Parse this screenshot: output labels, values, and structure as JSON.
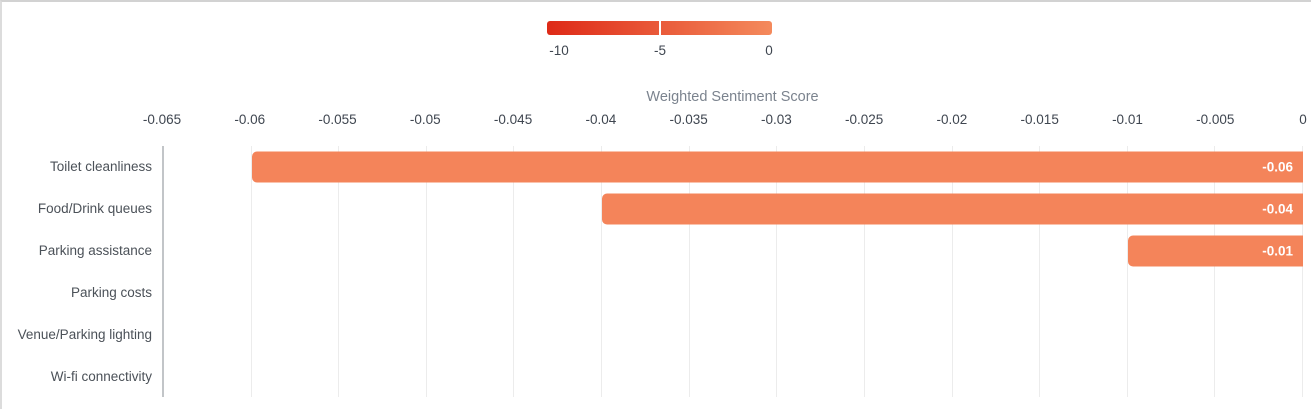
{
  "colorbar": {
    "min_label": "-10",
    "mid_label": "-5",
    "max_label": "0",
    "gradient_start": "#de2a17",
    "gradient_end": "#f48a5c"
  },
  "chart_data": {
    "type": "bar",
    "orientation": "horizontal",
    "title": "Weighted Sentiment Score",
    "categories": [
      "Toilet cleanliness",
      "Food/Drink queues",
      "Parking assistance",
      "Parking costs",
      "Venue/Parking lighting",
      "Wi-fi connectivity"
    ],
    "values": [
      -0.06,
      -0.04,
      -0.01,
      0,
      0,
      0
    ],
    "value_labels": [
      "-0.06",
      "-0.04",
      "-0.01",
      "",
      "",
      ""
    ],
    "xlim": [
      -0.065,
      0
    ],
    "x_ticks": [
      -0.065,
      -0.06,
      -0.055,
      -0.05,
      -0.045,
      -0.04,
      -0.035,
      -0.03,
      -0.025,
      -0.02,
      -0.015,
      -0.01,
      -0.005,
      0
    ],
    "x_tick_labels": [
      "-0.065",
      "-0.06",
      "-0.055",
      "-0.05",
      "-0.045",
      "-0.04",
      "-0.035",
      "-0.03",
      "-0.025",
      "-0.02",
      "-0.015",
      "-0.01",
      "-0.005",
      "0"
    ],
    "grid": "vertical",
    "legend_position": "top-center",
    "bar_color": "#f4845a",
    "bar_label_color": "#ffffff",
    "gridline_color": "#ececec",
    "axis_line_color": "#c2c5c8"
  }
}
